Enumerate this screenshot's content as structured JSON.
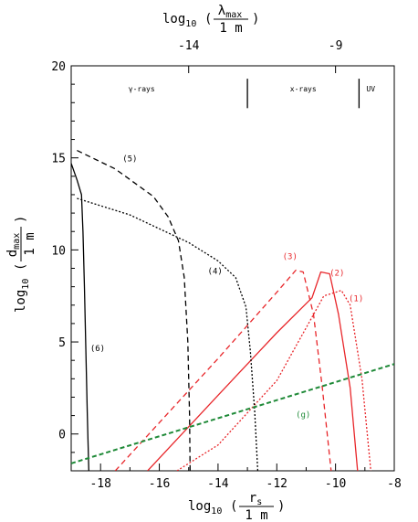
{
  "chart_data": {
    "type": "line",
    "xlabel": {
      "pre": "log",
      "sub": "10",
      "frac_num": "r",
      "frac_num_sub": "s",
      "frac_den": "1 m"
    },
    "ylabel": {
      "pre": "log",
      "sub": "10",
      "frac_num": "d",
      "frac_num_sub": "max",
      "frac_den": "1 m"
    },
    "top_axis_label": {
      "pre": "log",
      "sub": "10",
      "frac_num": "λ",
      "frac_num_sub": "max",
      "frac_den": "1 m"
    },
    "xlim": [
      -19,
      -8
    ],
    "ylim": [
      -2,
      20
    ],
    "x_ticks": [
      -18,
      -16,
      -14,
      -12,
      -10,
      -8
    ],
    "x_tick_labels": [
      "-18",
      "-16",
      "-14",
      "-12",
      "-10",
      "-8"
    ],
    "y_ticks": [
      0,
      5,
      10,
      15,
      20
    ],
    "y_tick_labels": [
      "0",
      "5",
      "10",
      "15",
      "20"
    ],
    "top_ticks": [
      -14,
      -9
    ],
    "top_tick_labels": [
      "-14",
      "-9"
    ],
    "top_tick_positions_x": [
      -15.0,
      -10.0
    ],
    "band_dividers_x": [
      -13.0,
      -9.2
    ],
    "band_labels": [
      {
        "text": "γ-rays",
        "x": -16.6
      },
      {
        "text": "x-rays",
        "x": -11.1
      },
      {
        "text": "UV",
        "x": -8.8
      }
    ],
    "series": [
      {
        "name": "(1)",
        "color": "#e8262a",
        "dash": "2,2",
        "x": [
          -15.4,
          -14.0,
          -12.0,
          -10.4,
          -9.8,
          -9.5,
          -9.1,
          -8.8
        ],
        "y": [
          -2.0,
          -0.6,
          2.9,
          7.5,
          7.8,
          7.0,
          3.0,
          -2.0
        ],
        "label_x": -9.3,
        "label_y": 7.2
      },
      {
        "name": "(2)",
        "color": "#e8262a",
        "dash": "",
        "x": [
          -16.4,
          -14.0,
          -12.0,
          -10.8,
          -10.5,
          -10.2,
          -9.9,
          -9.5,
          -9.25
        ],
        "y": [
          -2.0,
          2.1,
          5.5,
          7.4,
          8.8,
          8.7,
          6.5,
          2.5,
          -2.0
        ],
        "label_x": -9.95,
        "label_y": 8.6
      },
      {
        "name": "(3)",
        "color": "#e8262a",
        "dash": "6,4",
        "x": [
          -17.5,
          -14.0,
          -12.0,
          -11.35,
          -11.1,
          -10.75,
          -10.45,
          -10.15
        ],
        "y": [
          -2.0,
          4.1,
          7.7,
          8.9,
          8.8,
          6.5,
          2.5,
          -2.0
        ],
        "label_x": -11.55,
        "label_y": 9.5
      },
      {
        "name": "(4)",
        "color": "#000000",
        "dash": "2,2",
        "x": [
          -18.8,
          -17.0,
          -15.0,
          -14.0,
          -13.4,
          -13.05,
          -12.9,
          -12.75,
          -12.65
        ],
        "y": [
          12.8,
          11.9,
          10.4,
          9.4,
          8.5,
          6.9,
          4.5,
          1.2,
          -2.0
        ],
        "label_x": -14.1,
        "label_y": 8.7
      },
      {
        "name": "(5)",
        "color": "#000000",
        "dash": "6,4",
        "x": [
          -18.8,
          -17.5,
          -16.2,
          -15.7,
          -15.35,
          -15.15,
          -15.03,
          -14.97,
          -14.95
        ],
        "y": [
          15.4,
          14.4,
          12.9,
          11.8,
          10.5,
          8.5,
          5.0,
          1.0,
          -2.0
        ],
        "label_x": -17.0,
        "label_y": 14.8
      },
      {
        "name": "(6)",
        "color": "#000000",
        "dash": "",
        "x": [
          -19.0,
          -18.8,
          -18.65,
          -18.6,
          -18.55,
          -18.5,
          -18.45,
          -18.4
        ],
        "y": [
          14.7,
          13.8,
          13.0,
          11.0,
          8.0,
          4.5,
          1.0,
          -2.0
        ],
        "label_x": -18.1,
        "label_y": 4.5
      },
      {
        "name": "(g)",
        "color": "#1f8a38",
        "dash": "5,3",
        "x": [
          -19.0,
          -8.0
        ],
        "y": [
          -1.6,
          3.8
        ],
        "label_x": -11.1,
        "label_y": 0.9
      }
    ]
  }
}
